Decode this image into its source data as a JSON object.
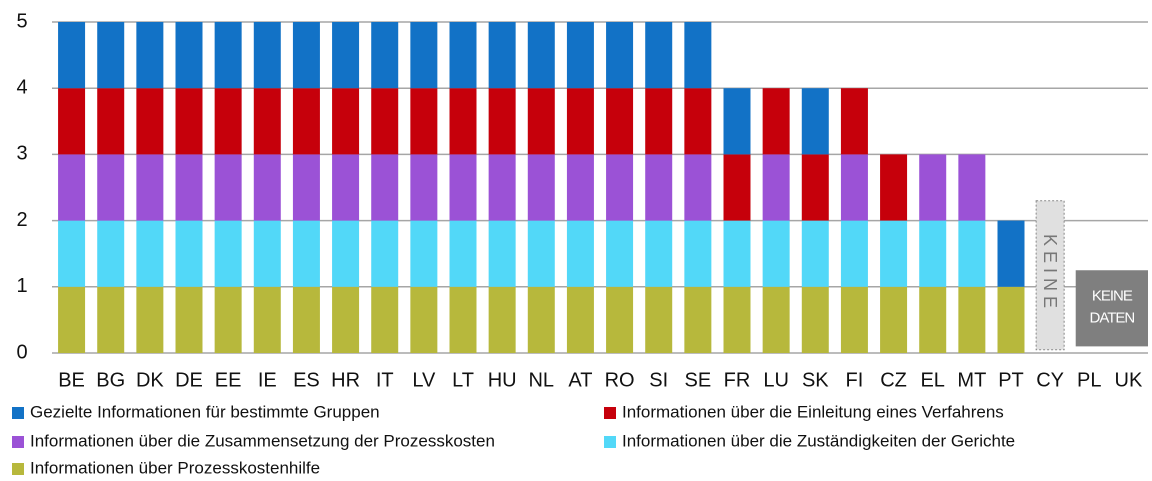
{
  "chart_data": {
    "type": "stacked_bar",
    "categories": [
      "BE",
      "BG",
      "DK",
      "DE",
      "EE",
      "IE",
      "ES",
      "HR",
      "IT",
      "LV",
      "LT",
      "HU",
      "NL",
      "AT",
      "RO",
      "SI",
      "SE",
      "FR",
      "LU",
      "SK",
      "FI",
      "CZ",
      "EL",
      "MT",
      "PT",
      "CY",
      "PL",
      "UK"
    ],
    "series": [
      {
        "name": "Gezielte Informationen für bestimmte Gruppen",
        "color": "#1272c6",
        "values": [
          1,
          1,
          1,
          1,
          1,
          1,
          1,
          1,
          1,
          1,
          1,
          1,
          1,
          1,
          1,
          1,
          1,
          1,
          0,
          1,
          0,
          0,
          0,
          0,
          1,
          null,
          null,
          null
        ]
      },
      {
        "name": "Informationen über die Einleitung eines Verfahrens",
        "color": "#c6000b",
        "values": [
          1,
          1,
          1,
          1,
          1,
          1,
          1,
          1,
          1,
          1,
          1,
          1,
          1,
          1,
          1,
          1,
          1,
          1,
          1,
          1,
          1,
          1,
          0,
          0,
          0,
          null,
          null,
          null
        ]
      },
      {
        "name": "Informationen über die Zusammensetzung der Prozesskosten",
        "color": "#9b52d6",
        "values": [
          1,
          1,
          1,
          1,
          1,
          1,
          1,
          1,
          1,
          1,
          1,
          1,
          1,
          1,
          1,
          1,
          1,
          0,
          1,
          0,
          1,
          0,
          1,
          1,
          0,
          null,
          null,
          null
        ]
      },
      {
        "name": "Informationen über die Zuständigkeiten der Gerichte",
        "color": "#52d8f8",
        "values": [
          1,
          1,
          1,
          1,
          1,
          1,
          1,
          1,
          1,
          1,
          1,
          1,
          1,
          1,
          1,
          1,
          1,
          1,
          1,
          1,
          1,
          1,
          1,
          1,
          0,
          null,
          null,
          null
        ]
      },
      {
        "name": "Informationen über Prozesskostenhilfe",
        "color": "#b7b83c",
        "values": [
          1,
          1,
          1,
          1,
          1,
          1,
          1,
          1,
          1,
          1,
          1,
          1,
          1,
          1,
          1,
          1,
          1,
          1,
          1,
          1,
          1,
          1,
          1,
          1,
          1,
          null,
          null,
          null
        ]
      }
    ],
    "ylim": [
      0,
      5
    ],
    "yticks": [
      0,
      1,
      2,
      3,
      4,
      5
    ],
    "grid": true,
    "annotations": [
      {
        "text": "KEINE"
      },
      {
        "lines": [
          "KEINE",
          "DATEN"
        ]
      }
    ]
  }
}
